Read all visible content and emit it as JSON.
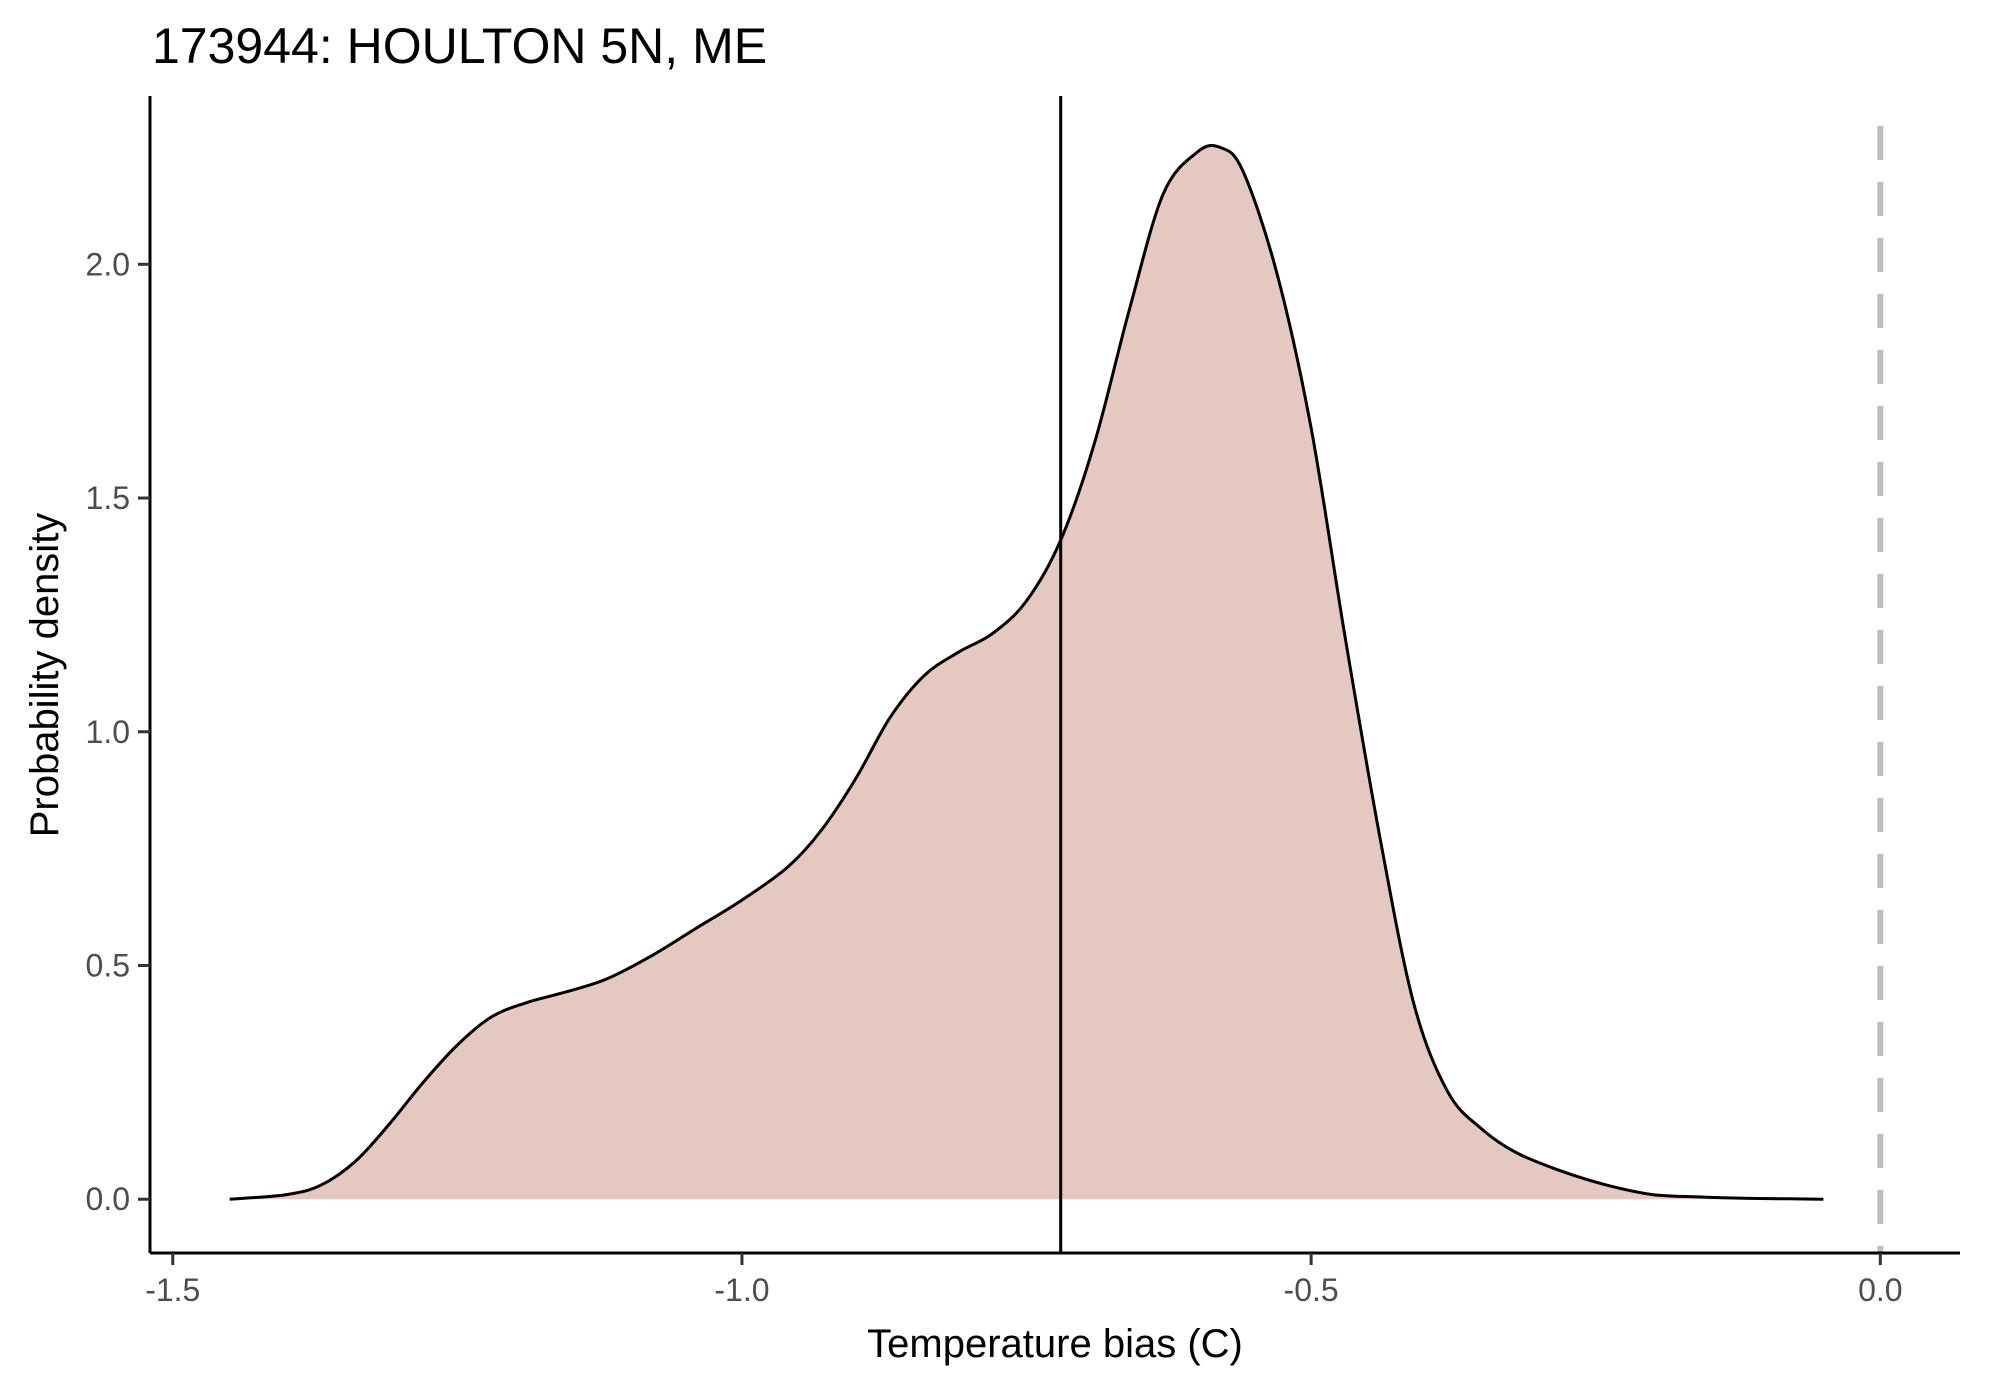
{
  "chart_data": {
    "type": "area",
    "title": "173944: HOULTON 5N, ME",
    "xlabel": "Temperature bias (C)",
    "ylabel": "Probability density",
    "xlim": [
      -1.52,
      0.07
    ],
    "ylim": [
      -0.115,
      2.36
    ],
    "x_ticks": [
      -1.5,
      -1.0,
      -0.5,
      0.0
    ],
    "x_tick_labels": [
      "-1.5",
      "-1.0",
      "-0.5",
      "0.0"
    ],
    "y_ticks": [
      0.0,
      0.5,
      1.0,
      1.5,
      2.0
    ],
    "y_tick_labels": [
      "0.0",
      "0.5",
      "1.0",
      "1.5",
      "2.0"
    ],
    "grid": false,
    "legend": "none",
    "fill_color": "#e5c8c0",
    "line_color": "#000000",
    "reference_line_color": "#bebebe",
    "density_curve": {
      "x": [
        -1.45,
        -1.4,
        -1.37,
        -1.34,
        -1.31,
        -1.28,
        -1.25,
        -1.22,
        -1.19,
        -1.16,
        -1.12,
        -1.08,
        -1.04,
        -1.0,
        -0.96,
        -0.93,
        -0.9,
        -0.87,
        -0.84,
        -0.81,
        -0.78,
        -0.75,
        -0.72,
        -0.69,
        -0.66,
        -0.63,
        -0.6,
        -0.58,
        -0.56,
        -0.53,
        -0.5,
        -0.47,
        -0.44,
        -0.41,
        -0.38,
        -0.35,
        -0.32,
        -0.28,
        -0.24,
        -0.2,
        -0.16,
        -0.12,
        -0.08,
        -0.05
      ],
      "y": [
        0.0,
        0.01,
        0.03,
        0.08,
        0.16,
        0.25,
        0.33,
        0.39,
        0.42,
        0.44,
        0.47,
        0.52,
        0.58,
        0.64,
        0.71,
        0.79,
        0.9,
        1.03,
        1.12,
        1.17,
        1.21,
        1.28,
        1.41,
        1.62,
        1.9,
        2.15,
        2.24,
        2.25,
        2.2,
        1.98,
        1.65,
        1.2,
        0.78,
        0.42,
        0.23,
        0.15,
        0.1,
        0.06,
        0.03,
        0.01,
        0.005,
        0.002,
        0.001,
        0.0
      ]
    },
    "vertical_line_x": -0.72,
    "reference_line_x": 0.0
  }
}
